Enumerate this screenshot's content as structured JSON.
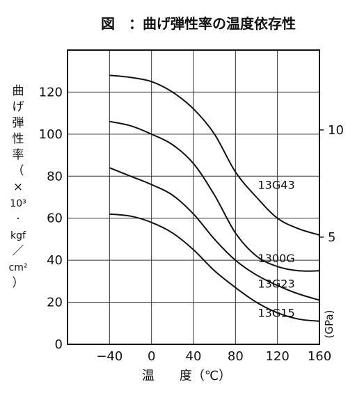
{
  "chart_data": {
    "type": "line",
    "title": "図　：曲げ弾性率の温度依存性",
    "xlabel": "温　　度（℃）",
    "ylabel_chars": [
      "曲",
      "げ",
      "弾",
      "性",
      "率",
      "（",
      "×",
      "10³",
      "·",
      "kgf",
      "／",
      "cm²",
      "）"
    ],
    "y2label": "(GPa)",
    "xlim": [
      -80,
      160
    ],
    "ylim": [
      0,
      140
    ],
    "x_ticks": [
      -40,
      0,
      40,
      80,
      120,
      160
    ],
    "x_tick_labels": [
      "−40",
      "0",
      "40",
      "80",
      "120",
      "160"
    ],
    "y_ticks": [
      0,
      20,
      40,
      60,
      80,
      100,
      120
    ],
    "y_tick_labels": [
      "0",
      "20",
      "40",
      "60",
      "80",
      "100",
      "120"
    ],
    "y2_ticks": [
      {
        "value": 51,
        "label": "5"
      },
      {
        "value": 102,
        "label": "10"
      }
    ],
    "grid": true,
    "series": [
      {
        "name": "13G43",
        "x": [
          -40,
          -20,
          0,
          20,
          40,
          60,
          80,
          100,
          120,
          140,
          160
        ],
        "y": [
          128,
          127,
          125,
          120,
          112,
          100,
          82,
          70,
          60,
          55,
          52
        ]
      },
      {
        "name": "1300G",
        "x": [
          -40,
          -20,
          0,
          20,
          40,
          60,
          80,
          100,
          120,
          140,
          160
        ],
        "y": [
          106,
          104,
          100,
          95,
          86,
          71,
          53,
          42,
          37,
          35,
          35
        ]
      },
      {
        "name": "13G23",
        "x": [
          -40,
          -20,
          0,
          20,
          40,
          60,
          80,
          100,
          120,
          140,
          160
        ],
        "y": [
          84,
          80,
          76,
          71,
          62,
          50,
          40,
          33,
          28,
          24,
          21
        ]
      },
      {
        "name": "13G15",
        "x": [
          -40,
          -20,
          0,
          20,
          40,
          60,
          80,
          100,
          120,
          140,
          160
        ],
        "y": [
          62,
          61,
          58,
          53,
          45,
          35,
          27,
          20,
          15,
          12,
          11
        ]
      }
    ]
  }
}
